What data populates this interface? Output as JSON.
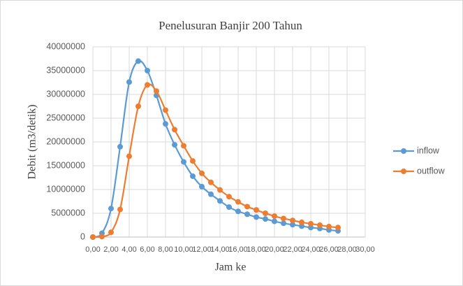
{
  "chart_data": {
    "type": "scatter",
    "title": "Penelusuran Banjir 200 Tahun",
    "x_label": "Jam ke",
    "y_label": "Debit (m3/detik)",
    "x": [
      0,
      1,
      2,
      3,
      4,
      5,
      6,
      7,
      8,
      9,
      10,
      11,
      12,
      13,
      14,
      15,
      16,
      17,
      18,
      19,
      20,
      21,
      22,
      23,
      24,
      25,
      26,
      27
    ],
    "series": [
      {
        "name": "inflow",
        "color": "#5b9bd5",
        "values": [
          0,
          800000,
          6000000,
          19000000,
          32600000,
          37000000,
          35000000,
          29800000,
          23800000,
          19400000,
          15800000,
          12800000,
          10600000,
          9000000,
          7600000,
          6300000,
          5400000,
          4800000,
          4200000,
          3800000,
          3300000,
          2900000,
          2600000,
          2300000,
          2000000,
          1800000,
          1500000,
          1300000
        ]
      },
      {
        "name": "outflow",
        "color": "#ed7d31",
        "values": [
          0,
          100000,
          1000000,
          5800000,
          17000000,
          27500000,
          32000000,
          30700000,
          26700000,
          22600000,
          19200000,
          16000000,
          13400000,
          11500000,
          9900000,
          8500000,
          7400000,
          6400000,
          5700000,
          5000000,
          4400000,
          3900000,
          3500000,
          3100000,
          2800000,
          2500000,
          2200000,
          2000000
        ]
      }
    ],
    "xlim": [
      0,
      30
    ],
    "xticks": [
      {
        "value": 0,
        "label": "0,00"
      },
      {
        "value": 2,
        "label": "2,00"
      },
      {
        "value": 4,
        "label": "4,00"
      },
      {
        "value": 6,
        "label": "6,00"
      },
      {
        "value": 8,
        "label": "8,00"
      },
      {
        "value": 10,
        "label": "10,00"
      },
      {
        "value": 12,
        "label": "12,00"
      },
      {
        "value": 14,
        "label": "14,00"
      },
      {
        "value": 16,
        "label": "16,00"
      },
      {
        "value": 18,
        "label": "18,00"
      },
      {
        "value": 20,
        "label": "20,00"
      },
      {
        "value": 22,
        "label": "22,00"
      },
      {
        "value": 24,
        "label": "24,00"
      },
      {
        "value": 26,
        "label": "26,00"
      },
      {
        "value": 28,
        "label": "28,00"
      },
      {
        "value": 30,
        "label": "30,00"
      }
    ],
    "ylim": [
      0,
      40000000
    ],
    "yticks": [
      0,
      5000000,
      10000000,
      15000000,
      20000000,
      25000000,
      30000000,
      35000000,
      40000000
    ],
    "grid": true,
    "legend": "right"
  }
}
